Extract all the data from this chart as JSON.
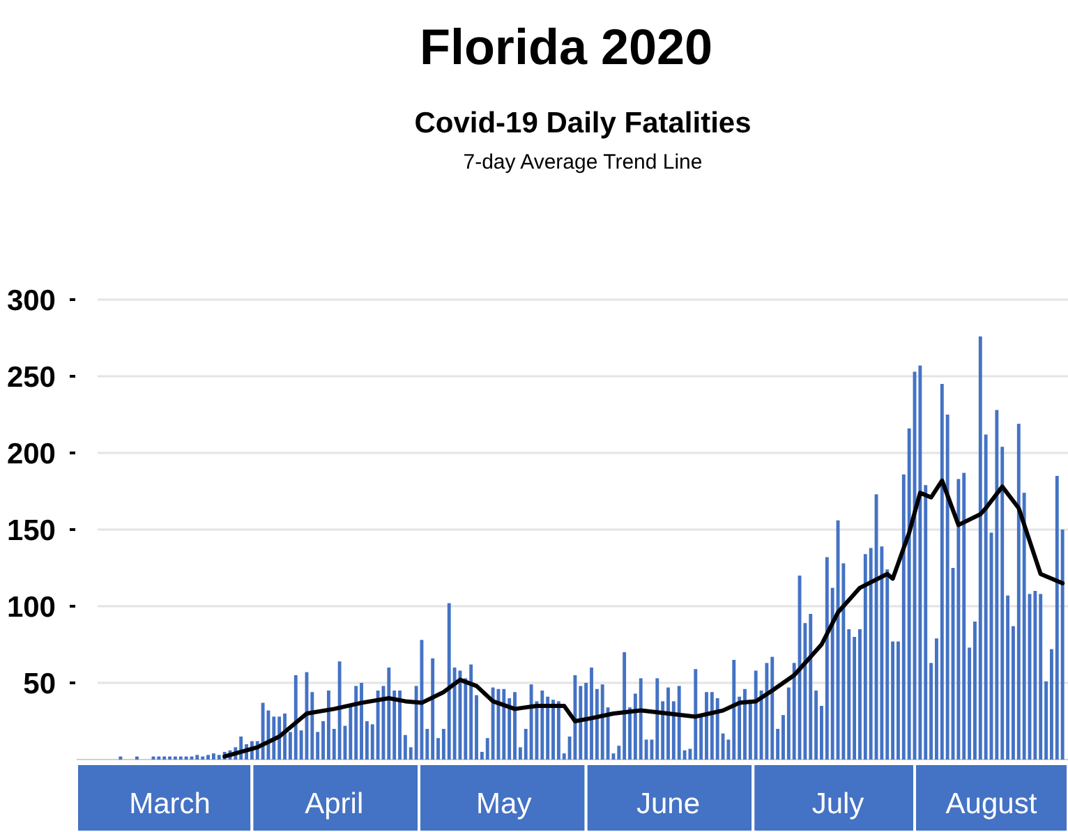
{
  "chart_data": {
    "type": "bar",
    "title": "Florida 2020",
    "subtitle": "Covid-19 Daily Fatalities",
    "annotations": [
      "7-day Average Trend Line"
    ],
    "x": [
      "2020-03-01",
      "2020-03-02",
      "2020-03-03",
      "2020-03-04",
      "2020-03-05",
      "2020-03-06",
      "2020-03-07",
      "2020-03-08",
      "2020-03-09",
      "2020-03-10",
      "2020-03-11",
      "2020-03-12",
      "2020-03-13",
      "2020-03-14",
      "2020-03-15",
      "2020-03-16",
      "2020-03-17",
      "2020-03-18",
      "2020-03-19",
      "2020-03-20",
      "2020-03-21",
      "2020-03-22",
      "2020-03-23",
      "2020-03-24",
      "2020-03-25",
      "2020-03-26",
      "2020-03-27",
      "2020-03-28",
      "2020-03-29",
      "2020-03-30",
      "2020-03-31",
      "2020-04-01",
      "2020-04-02",
      "2020-04-03",
      "2020-04-04",
      "2020-04-05",
      "2020-04-06",
      "2020-04-07",
      "2020-04-08",
      "2020-04-09",
      "2020-04-10",
      "2020-04-11",
      "2020-04-12",
      "2020-04-13",
      "2020-04-14",
      "2020-04-15",
      "2020-04-16",
      "2020-04-17",
      "2020-04-18",
      "2020-04-19",
      "2020-04-20",
      "2020-04-21",
      "2020-04-22",
      "2020-04-23",
      "2020-04-24",
      "2020-04-25",
      "2020-04-26",
      "2020-04-27",
      "2020-04-28",
      "2020-04-29",
      "2020-04-30",
      "2020-05-01",
      "2020-05-02",
      "2020-05-03",
      "2020-05-04",
      "2020-05-05",
      "2020-05-06",
      "2020-05-07",
      "2020-05-08",
      "2020-05-09",
      "2020-05-10",
      "2020-05-11",
      "2020-05-12",
      "2020-05-13",
      "2020-05-14",
      "2020-05-15",
      "2020-05-16",
      "2020-05-17",
      "2020-05-18",
      "2020-05-19",
      "2020-05-20",
      "2020-05-21",
      "2020-05-22",
      "2020-05-23",
      "2020-05-24",
      "2020-05-25",
      "2020-05-26",
      "2020-05-27",
      "2020-05-28",
      "2020-05-29",
      "2020-05-30",
      "2020-05-31",
      "2020-06-01",
      "2020-06-02",
      "2020-06-03",
      "2020-06-04",
      "2020-06-05",
      "2020-06-06",
      "2020-06-07",
      "2020-06-08",
      "2020-06-09",
      "2020-06-10",
      "2020-06-11",
      "2020-06-12",
      "2020-06-13",
      "2020-06-14",
      "2020-06-15",
      "2020-06-16",
      "2020-06-17",
      "2020-06-18",
      "2020-06-19",
      "2020-06-20",
      "2020-06-21",
      "2020-06-22",
      "2020-06-23",
      "2020-06-24",
      "2020-06-25",
      "2020-06-26",
      "2020-06-27",
      "2020-06-28",
      "2020-06-29",
      "2020-06-30",
      "2020-07-01",
      "2020-07-02",
      "2020-07-03",
      "2020-07-04",
      "2020-07-05",
      "2020-07-06",
      "2020-07-07",
      "2020-07-08",
      "2020-07-09",
      "2020-07-10",
      "2020-07-11",
      "2020-07-12",
      "2020-07-13",
      "2020-07-14",
      "2020-07-15",
      "2020-07-16",
      "2020-07-17",
      "2020-07-18",
      "2020-07-19",
      "2020-07-20",
      "2020-07-21",
      "2020-07-22",
      "2020-07-23",
      "2020-07-24",
      "2020-07-25",
      "2020-07-26",
      "2020-07-27",
      "2020-07-28",
      "2020-07-29",
      "2020-07-30",
      "2020-07-31",
      "2020-08-01",
      "2020-08-02",
      "2020-08-03",
      "2020-08-04",
      "2020-08-05",
      "2020-08-06",
      "2020-08-07",
      "2020-08-08",
      "2020-08-09",
      "2020-08-10",
      "2020-08-11",
      "2020-08-12",
      "2020-08-13",
      "2020-08-14",
      "2020-08-15",
      "2020-08-16",
      "2020-08-17",
      "2020-08-18",
      "2020-08-19",
      "2020-08-20",
      "2020-08-21",
      "2020-08-22",
      "2020-08-23",
      "2020-08-24",
      "2020-08-25",
      "2020-08-26"
    ],
    "series": [
      {
        "color": "#4472c4",
        "values": [
          0,
          0,
          0,
          0,
          0,
          0,
          2,
          0,
          0,
          2,
          0,
          0,
          2,
          2,
          2,
          2,
          2,
          2,
          2,
          2,
          3,
          2,
          3,
          4,
          3,
          5,
          6,
          8,
          15,
          10,
          12,
          12,
          37,
          32,
          28,
          28,
          30,
          18,
          55,
          19,
          57,
          44,
          18,
          25,
          45,
          20,
          64,
          22,
          35,
          48,
          50,
          25,
          23,
          45,
          48,
          60,
          45,
          45,
          16,
          8,
          48,
          78,
          20,
          66,
          14,
          20,
          102,
          60,
          58,
          53,
          62,
          42,
          5,
          14,
          47,
          46,
          46,
          40,
          44,
          8,
          20,
          49,
          38,
          45,
          41,
          39,
          38,
          4,
          15,
          55,
          48,
          50,
          60,
          46,
          49,
          34,
          4,
          9,
          70,
          34,
          43,
          53,
          13,
          13,
          53,
          38,
          47,
          38,
          48,
          6,
          7,
          59,
          30,
          44,
          44,
          40,
          17,
          13,
          65,
          41,
          46,
          39,
          58,
          45,
          63,
          67,
          20,
          29,
          47,
          63,
          120,
          89,
          95,
          45,
          35,
          132,
          112,
          156,
          128,
          85,
          80,
          85,
          134,
          138,
          173,
          139,
          124,
          77,
          77,
          186,
          216,
          253,
          257,
          179,
          63,
          79,
          245,
          225,
          125,
          183,
          187,
          73,
          90,
          276,
          212,
          148,
          228,
          204,
          107,
          87,
          219,
          174,
          108,
          110,
          108,
          51,
          72,
          185,
          150
        ]
      },
      {
        "type": "line",
        "color": "#000000",
        "x": [
          "2020-03-26",
          "2020-04-01",
          "2020-04-05",
          "2020-04-10",
          "2020-04-15",
          "2020-04-20",
          "2020-04-25",
          "2020-04-28",
          "2020-05-01",
          "2020-05-05",
          "2020-05-08",
          "2020-05-11",
          "2020-05-14",
          "2020-05-18",
          "2020-05-22",
          "2020-05-27",
          "2020-05-29",
          "2020-06-01",
          "2020-06-05",
          "2020-06-10",
          "2020-06-15",
          "2020-06-20",
          "2020-06-25",
          "2020-06-28",
          "2020-07-01",
          "2020-07-04",
          "2020-07-08",
          "2020-07-13",
          "2020-07-16",
          "2020-07-20",
          "2020-07-25",
          "2020-07-26",
          "2020-07-29",
          "2020-07-31",
          "2020-08-02",
          "2020-08-04",
          "2020-08-07",
          "2020-08-11",
          "2020-08-12",
          "2020-08-15",
          "2020-08-18",
          "2020-08-22",
          "2020-08-26"
        ],
        "values": [
          2,
          8,
          15,
          30,
          33,
          37,
          40,
          38,
          37,
          44,
          52,
          48,
          38,
          33,
          35,
          35,
          25,
          27,
          30,
          32,
          30,
          28,
          32,
          37,
          38,
          45,
          55,
          75,
          96,
          112,
          121,
          118,
          148,
          174,
          171,
          182,
          153,
          160,
          164,
          178,
          164,
          121,
          115
        ]
      }
    ],
    "xlim": [
      "2020-02-28",
      "2020-08-27"
    ],
    "xticks": [
      {
        "value": "2020-03-16",
        "label": "March"
      },
      {
        "value": "2020-04-15",
        "label": "April"
      },
      {
        "value": "2020-05-16",
        "label": "May"
      },
      {
        "value": "2020-06-15",
        "label": "June"
      },
      {
        "value": "2020-07-16",
        "label": "July"
      },
      {
        "value": "2020-08-13",
        "label": "August"
      }
    ],
    "ylim": [
      0,
      300
    ],
    "yticks": [
      50,
      100,
      150,
      200,
      250,
      300
    ],
    "grid": "y",
    "line_style": "solid",
    "marker": "none"
  }
}
